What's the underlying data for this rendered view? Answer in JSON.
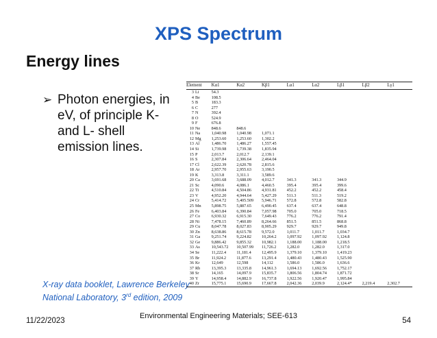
{
  "slide": {
    "title": "XPS Spectrum",
    "subtitle": "Energy lines",
    "bullet_arrow": "➢",
    "bullet_text": "Photon energies, in eV, of principle K- and L- shell emission lines.",
    "source_line1": "X-ray data booklet, Lawrence Berkeley",
    "source_line2_pre": "National Laboratory, 3",
    "source_line2_sup": "rd",
    "source_line2_post": " edition, 2009",
    "footer_date": "11/22/2023",
    "footer_center": "Environmental Engineering Materials; SEE-613",
    "footer_page": "54"
  },
  "table": {
    "headers": [
      "Element",
      "Kα1",
      "Kα2",
      "Kβ1",
      "Lα1",
      "Lα2",
      "Lβ1",
      "Lβ2",
      "Lγ1"
    ],
    "rows": [
      [
        "3",
        "Li",
        "54.3",
        "",
        "",
        "",
        "",
        "",
        "",
        ""
      ],
      [
        "4",
        "Be",
        "108.5",
        "",
        "",
        "",
        "",
        "",
        "",
        ""
      ],
      [
        "5",
        "B",
        "183.3",
        "",
        "",
        "",
        "",
        "",
        "",
        ""
      ],
      [
        "6",
        "C",
        "277",
        "",
        "",
        "",
        "",
        "",
        "",
        ""
      ],
      [
        "7",
        "N",
        "392.4",
        "",
        "",
        "",
        "",
        "",
        "",
        ""
      ],
      [
        "8",
        "O",
        "524.9",
        "",
        "",
        "",
        "",
        "",
        "",
        ""
      ],
      [
        "9",
        "F",
        "676.8",
        "",
        "",
        "",
        "",
        "",
        "",
        ""
      ],
      [
        "10",
        "Ne",
        "848.6",
        "848.6",
        "",
        "",
        "",
        "",
        "",
        ""
      ],
      [
        "11",
        "Na",
        "1,040.98",
        "1,040.98",
        "1,071.1",
        "",
        "",
        "",
        "",
        ""
      ],
      [
        "12",
        "Mg",
        "1,253.60",
        "1,253.60",
        "1,302.2",
        "",
        "",
        "",
        "",
        ""
      ],
      [
        "13",
        "Al",
        "1,486.70",
        "1,486.27",
        "1,557.45",
        "",
        "",
        "",
        "",
        ""
      ],
      [
        "14",
        "Si",
        "1,739.98",
        "1,739.38",
        "1,835.94",
        "",
        "",
        "",
        "",
        ""
      ],
      [
        "15",
        "P",
        "2,013.7",
        "2,012.7",
        "2,139.1",
        "",
        "",
        "",
        "",
        ""
      ],
      [
        "16",
        "S",
        "2,307.84",
        "2,306.64",
        "2,464.04",
        "",
        "",
        "",
        "",
        ""
      ],
      [
        "17",
        "Cl",
        "2,622.39",
        "2,620.78",
        "2,815.6",
        "",
        "",
        "",
        "",
        ""
      ],
      [
        "18",
        "Ar",
        "2,957.70",
        "2,955.63",
        "3,190.5",
        "",
        "",
        "",
        "",
        ""
      ],
      [
        "19",
        "K",
        "3,313.8",
        "3,311.1",
        "3,589.6",
        "",
        "",
        "",
        "",
        ""
      ],
      [
        "20",
        "Ca",
        "3,691.68",
        "3,688.09",
        "4,012.7",
        "341.3",
        "341.3",
        "344.9",
        "",
        ""
      ],
      [
        "21",
        "Sc",
        "4,090.6",
        "4,086.1",
        "4,460.5",
        "395.4",
        "395.4",
        "399.6",
        "",
        ""
      ],
      [
        "22",
        "Ti",
        "4,510.84",
        "4,504.86",
        "4,931.81",
        "452.2",
        "452.2",
        "458.4",
        "",
        ""
      ],
      [
        "23",
        "V",
        "4,952.20",
        "4,944.64",
        "5,427.29",
        "511.3",
        "511.3",
        "519.2",
        "",
        ""
      ],
      [
        "24",
        "Cr",
        "5,414.72",
        "5,405.509",
        "5,946.71",
        "572.8",
        "572.8",
        "582.8",
        "",
        ""
      ],
      [
        "25",
        "Mn",
        "5,898.75",
        "5,887.65",
        "6,490.45",
        "637.4",
        "637.4",
        "648.8",
        "",
        ""
      ],
      [
        "26",
        "Fe",
        "6,403.84",
        "6,390.84",
        "7,057.98",
        "705.0",
        "705.0",
        "718.5",
        "",
        ""
      ],
      [
        "27",
        "Co",
        "6,930.32",
        "6,915.30",
        "7,649.43",
        "776.2",
        "776.2",
        "791.4",
        "",
        ""
      ],
      [
        "28",
        "Ni",
        "7,478.15",
        "7,460.89",
        "8,264.66",
        "851.5",
        "851.5",
        "868.8",
        "",
        ""
      ],
      [
        "29",
        "Cu",
        "8,047.78",
        "8,027.83",
        "8,905.29",
        "929.7",
        "929.7",
        "949.8",
        "",
        ""
      ],
      [
        "30",
        "Zn",
        "8,638.86",
        "8,615.78",
        "9,572.0",
        "1,011.7",
        "1,011.7",
        "1,034.7",
        "",
        ""
      ],
      [
        "31",
        "Ga",
        "9,251.74",
        "9,224.82",
        "10,264.2",
        "1,097.92",
        "1,097.92",
        "1,124.8",
        "",
        ""
      ],
      [
        "32",
        "Ge",
        "9,886.42",
        "9,855.32",
        "10,982.1",
        "1,188.00",
        "1,188.00",
        "1,218.5",
        "",
        ""
      ],
      [
        "33",
        "As",
        "10,543.72",
        "10,507.99",
        "11,726.2",
        "1,282.0",
        "1,282.0",
        "1,317.0",
        "",
        ""
      ],
      [
        "34",
        "Se",
        "11,222.4",
        "11,181.4",
        "12,495.9",
        "1,379.10",
        "1,379.10",
        "1,419.23",
        "",
        ""
      ],
      [
        "35",
        "Br",
        "11,924.2",
        "11,877.6",
        "13,291.4",
        "1,480.43",
        "1,480.43",
        "1,525.90",
        "",
        ""
      ],
      [
        "36",
        "Kr",
        "12,649",
        "12,598",
        "14,112",
        "1,586.0",
        "1,586.0",
        "1,636.6",
        "",
        ""
      ],
      [
        "37",
        "Rb",
        "13,395.3",
        "13,335.8",
        "14,961.3",
        "1,694.13",
        "1,692.56",
        "1,752.17",
        "",
        ""
      ],
      [
        "38",
        "Sr",
        "14,165",
        "14,097.9",
        "15,835.7",
        "1,806.56",
        "1,804.74",
        "1,871.72",
        "",
        ""
      ],
      [
        "39",
        "Y",
        "14,958.4",
        "14,882.9",
        "16,737.8",
        "1,922.56",
        "1,920.47",
        "1,995.84",
        "",
        ""
      ],
      [
        "40",
        "Zr",
        "15,775.1",
        "15,690.9",
        "17,667.8",
        "2,042.36",
        "2,039.9",
        "2,124.4*",
        "2,219.4",
        "2,302.7"
      ]
    ]
  }
}
